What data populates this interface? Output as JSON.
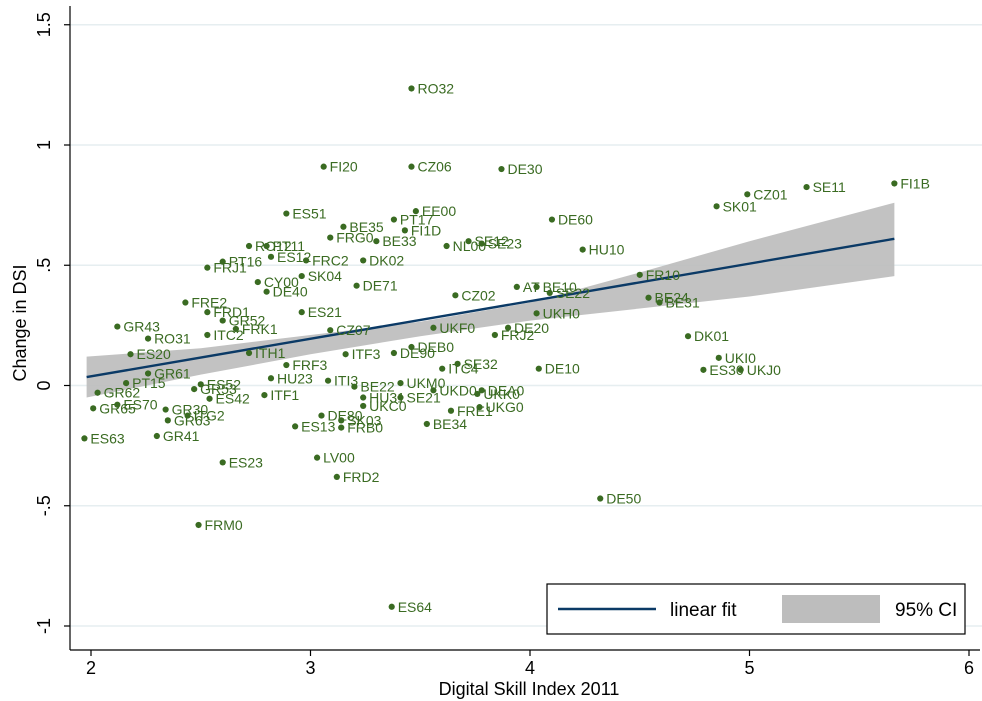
{
  "chart_data": {
    "type": "scatter",
    "xlabel": "Digital Skill Index 2011",
    "ylabel": "Change in DSI",
    "xlim": [
      1.97,
      6.07
    ],
    "ylim": [
      -1.05,
      1.55
    ],
    "xticks": [
      2,
      3,
      4,
      5,
      6
    ],
    "yticks": [
      -1,
      -0.5,
      0,
      0.5,
      1,
      1.5
    ],
    "ytick_labels": [
      "-1",
      "-.5",
      "0",
      ".5",
      "1",
      "1.5"
    ],
    "grid": true,
    "legend": {
      "position": "bottom-right",
      "entries": [
        {
          "label": "linear fit",
          "kind": "line",
          "color": "#0b3a66"
        },
        {
          "label": "95% CI",
          "kind": "area",
          "color": "#bdbdbd"
        }
      ]
    },
    "colors": {
      "points": "#3a6b22",
      "fit": "#0b3a66",
      "ci": "#bdbdbd",
      "grid": "#e6eef0"
    },
    "fit": {
      "x": [
        1.98,
        5.66
      ],
      "y": [
        0.035,
        0.61
      ]
    },
    "ci": {
      "x": [
        1.98,
        2.5,
        3.0,
        3.5,
        4.0,
        4.5,
        5.0,
        5.66
      ],
      "upper": [
        0.12,
        0.155,
        0.21,
        0.265,
        0.345,
        0.47,
        0.6,
        0.76
      ],
      "lower": [
        -0.05,
        0.045,
        0.13,
        0.205,
        0.27,
        0.32,
        0.37,
        0.455
      ]
    },
    "points": [
      {
        "label": "RO32",
        "x": 3.46,
        "y": 1.235
      },
      {
        "label": "FI20",
        "x": 3.06,
        "y": 0.91
      },
      {
        "label": "CZ06",
        "x": 3.46,
        "y": 0.91
      },
      {
        "label": "DE30",
        "x": 3.87,
        "y": 0.9
      },
      {
        "label": "FI1B",
        "x": 5.66,
        "y": 0.84
      },
      {
        "label": "SE11",
        "x": 5.26,
        "y": 0.825
      },
      {
        "label": "CZ01",
        "x": 4.99,
        "y": 0.795
      },
      {
        "label": "SK01",
        "x": 4.85,
        "y": 0.745
      },
      {
        "label": "ES51",
        "x": 2.89,
        "y": 0.715
      },
      {
        "label": "EE00",
        "x": 3.48,
        "y": 0.725
      },
      {
        "label": "PT17",
        "x": 3.38,
        "y": 0.69
      },
      {
        "label": "DE60",
        "x": 4.1,
        "y": 0.69
      },
      {
        "label": "BE35",
        "x": 3.15,
        "y": 0.66
      },
      {
        "label": "FI1D",
        "x": 3.43,
        "y": 0.645
      },
      {
        "label": "FRG0",
        "x": 3.09,
        "y": 0.615
      },
      {
        "label": "BE33",
        "x": 3.3,
        "y": 0.6
      },
      {
        "label": "SE12",
        "x": 3.72,
        "y": 0.6
      },
      {
        "label": "SE23",
        "x": 3.78,
        "y": 0.59
      },
      {
        "label": "RO12",
        "x": 2.72,
        "y": 0.58
      },
      {
        "label": "PT11",
        "x": 2.8,
        "y": 0.58
      },
      {
        "label": "NL00",
        "x": 3.62,
        "y": 0.58
      },
      {
        "label": "ES12",
        "x": 2.82,
        "y": 0.535
      },
      {
        "label": "HU10",
        "x": 4.24,
        "y": 0.565
      },
      {
        "label": "PT16",
        "x": 2.6,
        "y": 0.515
      },
      {
        "label": "FRC2",
        "x": 2.98,
        "y": 0.52
      },
      {
        "label": "DK02",
        "x": 3.24,
        "y": 0.52
      },
      {
        "label": "FRJ1",
        "x": 2.53,
        "y": 0.49
      },
      {
        "label": "SK04",
        "x": 2.96,
        "y": 0.455
      },
      {
        "label": "FR10",
        "x": 4.5,
        "y": 0.46
      },
      {
        "label": "CY00",
        "x": 2.76,
        "y": 0.43
      },
      {
        "label": "DE40",
        "x": 2.8,
        "y": 0.39
      },
      {
        "label": "DE71",
        "x": 3.21,
        "y": 0.415
      },
      {
        "label": "AT",
        "x": 3.94,
        "y": 0.41
      },
      {
        "label": "BE10",
        "x": 4.03,
        "y": 0.41
      },
      {
        "label": "SE22",
        "x": 4.09,
        "y": 0.385
      },
      {
        "label": "CZ02",
        "x": 3.66,
        "y": 0.375
      },
      {
        "label": "FRE2",
        "x": 2.43,
        "y": 0.345
      },
      {
        "label": "BE24",
        "x": 4.54,
        "y": 0.365
      },
      {
        "label": "BE31",
        "x": 4.59,
        "y": 0.345
      },
      {
        "label": "FRD1",
        "x": 2.53,
        "y": 0.305
      },
      {
        "label": "ES21",
        "x": 2.96,
        "y": 0.305
      },
      {
        "label": "UKH0",
        "x": 4.03,
        "y": 0.3
      },
      {
        "label": "GR43",
        "x": 2.12,
        "y": 0.245
      },
      {
        "label": "GR52",
        "x": 2.6,
        "y": 0.27
      },
      {
        "label": "DE20",
        "x": 3.9,
        "y": 0.24
      },
      {
        "label": "UKF0",
        "x": 3.56,
        "y": 0.24
      },
      {
        "label": "FRJ2",
        "x": 3.84,
        "y": 0.21
      },
      {
        "label": "DK01",
        "x": 4.72,
        "y": 0.205
      },
      {
        "label": "RO31",
        "x": 2.26,
        "y": 0.195
      },
      {
        "label": "ITC2",
        "x": 2.53,
        "y": 0.21
      },
      {
        "label": "FRK1",
        "x": 2.66,
        "y": 0.235
      },
      {
        "label": "CZ07",
        "x": 3.09,
        "y": 0.23
      },
      {
        "label": "ITH1",
        "x": 2.72,
        "y": 0.135
      },
      {
        "label": "ES20",
        "x": 2.18,
        "y": 0.13
      },
      {
        "label": "FRD2",
        "x": 3.12,
        "y": -0.38
      },
      {
        "label": "DEB0",
        "x": 3.46,
        "y": 0.16
      },
      {
        "label": "DE90",
        "x": 3.38,
        "y": 0.135
      },
      {
        "label": "ITF3",
        "x": 3.16,
        "y": 0.13
      },
      {
        "label": "FRF3",
        "x": 2.89,
        "y": 0.085
      },
      {
        "label": "UKI0",
        "x": 4.86,
        "y": 0.115
      },
      {
        "label": "SE32",
        "x": 3.67,
        "y": 0.09
      },
      {
        "label": "ITC4",
        "x": 3.6,
        "y": 0.07
      },
      {
        "label": "DE10",
        "x": 4.04,
        "y": 0.07
      },
      {
        "label": "ES30",
        "x": 4.79,
        "y": 0.065
      },
      {
        "label": "UKJ0",
        "x": 4.96,
        "y": 0.065
      },
      {
        "label": "GR61",
        "x": 2.26,
        "y": 0.05
      },
      {
        "label": "PT15",
        "x": 2.16,
        "y": 0.01
      },
      {
        "label": "ES52",
        "x": 2.5,
        "y": 0.005
      },
      {
        "label": "UKM0",
        "x": 3.41,
        "y": 0.01
      },
      {
        "label": "HU23",
        "x": 2.82,
        "y": 0.03
      },
      {
        "label": "ITI3",
        "x": 3.08,
        "y": 0.02
      },
      {
        "label": "BE22",
        "x": 3.2,
        "y": -0.005
      },
      {
        "label": "GR53",
        "x": 2.47,
        "y": -0.015
      },
      {
        "label": "UKD0",
        "x": 3.56,
        "y": -0.02
      },
      {
        "label": "DEA0",
        "x": 3.78,
        "y": -0.02
      },
      {
        "label": "UKK0",
        "x": 3.76,
        "y": -0.035
      },
      {
        "label": "GR62",
        "x": 2.03,
        "y": -0.03
      },
      {
        "label": "ES42",
        "x": 2.54,
        "y": -0.055
      },
      {
        "label": "ITF1",
        "x": 2.79,
        "y": -0.04
      },
      {
        "label": "HU31",
        "x": 3.24,
        "y": -0.05
      },
      {
        "label": "SE21",
        "x": 3.41,
        "y": -0.05
      },
      {
        "label": "UKC0",
        "x": 3.24,
        "y": -0.085
      },
      {
        "label": "UKG0",
        "x": 3.77,
        "y": -0.09
      },
      {
        "label": "ES70",
        "x": 2.12,
        "y": -0.08
      },
      {
        "label": "GR65",
        "x": 2.01,
        "y": -0.095
      },
      {
        "label": "GR30",
        "x": 2.34,
        "y": -0.1
      },
      {
        "label": "FRE1",
        "x": 3.64,
        "y": -0.105
      },
      {
        "label": "ITG2",
        "x": 2.44,
        "y": -0.125
      },
      {
        "label": "DE80",
        "x": 3.05,
        "y": -0.125
      },
      {
        "label": "GR63",
        "x": 2.35,
        "y": -0.145
      },
      {
        "label": "SK03",
        "x": 3.14,
        "y": -0.145
      },
      {
        "label": "BE34",
        "x": 3.53,
        "y": -0.16
      },
      {
        "label": "ES13",
        "x": 2.93,
        "y": -0.17
      },
      {
        "label": "FRB0",
        "x": 3.14,
        "y": -0.175
      },
      {
        "label": "GR41",
        "x": 2.3,
        "y": -0.21
      },
      {
        "label": "ES63",
        "x": 1.97,
        "y": -0.22
      },
      {
        "label": "ES23",
        "x": 2.6,
        "y": -0.32
      },
      {
        "label": "LV00",
        "x": 3.03,
        "y": -0.3
      },
      {
        "label": "DE50",
        "x": 4.32,
        "y": -0.47
      },
      {
        "label": "FRM0",
        "x": 2.49,
        "y": -0.58
      },
      {
        "label": "ES64",
        "x": 3.37,
        "y": -0.92
      }
    ]
  }
}
